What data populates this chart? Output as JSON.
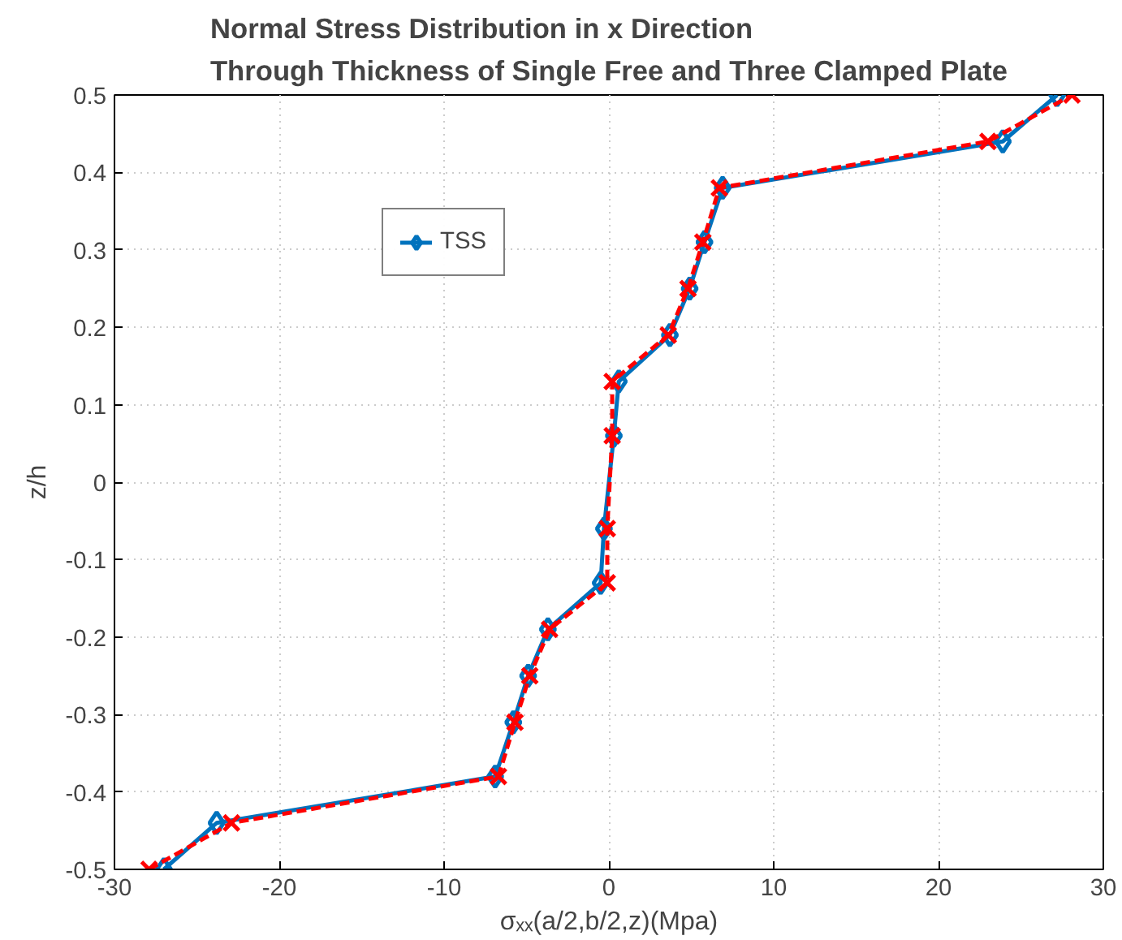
{
  "chart_data": {
    "type": "line",
    "title": "Normal Stress Distribution in x Direction\nThrough Thickness of Single Free and Three Clamped Plate",
    "xlabel": "σₓₓ(a/2,b/2,z)(Mpa)",
    "ylabel": "z/h",
    "xlim": [
      -30,
      30
    ],
    "xticks": [
      -30,
      -20,
      -10,
      0,
      10,
      20,
      30
    ],
    "ylim": [
      -0.5,
      0.5
    ],
    "yticks": [
      -0.5,
      -0.4,
      -0.3,
      -0.2,
      -0.1,
      0,
      0.1,
      0.2,
      0.3,
      0.4,
      0.5
    ],
    "grid": true,
    "legend": "top left",
    "series": [
      {
        "name": "TSS",
        "color": "#0072bd",
        "marker": "diamond",
        "line_style": "solid",
        "x": [
          -27.0,
          -23.8,
          -6.9,
          -5.8,
          -4.9,
          -3.7,
          -0.5,
          -0.3,
          0.3,
          0.6,
          3.7,
          4.9,
          5.8,
          6.9,
          23.9,
          27.2
        ],
        "values": [
          -0.5,
          -0.44,
          -0.38,
          -0.31,
          -0.25,
          -0.19,
          -0.13,
          -0.06,
          0.06,
          0.13,
          0.19,
          0.25,
          0.31,
          0.38,
          0.44,
          0.5
        ]
      },
      {
        "color": "#ff0000",
        "marker": "cross",
        "line_style": "dashed",
        "x": [
          -27.9,
          -22.9,
          -6.7,
          -5.7,
          -4.8,
          -3.6,
          -0.1,
          -0.1,
          0.2,
          0.2,
          3.6,
          4.8,
          5.7,
          6.7,
          23.0,
          28.1
        ],
        "values": [
          -0.5,
          -0.44,
          -0.38,
          -0.31,
          -0.25,
          -0.19,
          -0.13,
          -0.06,
          0.06,
          0.13,
          0.19,
          0.25,
          0.31,
          0.38,
          0.44,
          0.5
        ]
      }
    ]
  }
}
